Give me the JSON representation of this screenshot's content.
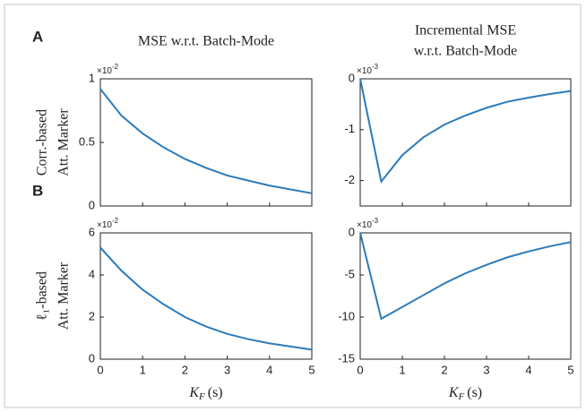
{
  "chart_data": [
    {
      "type": "line",
      "panel_label": "A",
      "title": [
        "MSE w.r.t. Batch-Mode"
      ],
      "ylabel": [
        "Corr.-based",
        "Att. Marker"
      ],
      "y_exponent": {
        "base": "×10",
        "power": "-2"
      },
      "x": [
        0,
        0.5,
        1,
        1.5,
        2,
        2.5,
        3,
        3.5,
        4,
        4.5,
        5
      ],
      "series": [
        {
          "color": "#2b7bba",
          "values": [
            0.92,
            0.71,
            0.57,
            0.46,
            0.37,
            0.3,
            0.24,
            0.2,
            0.16,
            0.13,
            0.1
          ]
        }
      ],
      "xlim": [
        0,
        5
      ],
      "xticks": [
        0,
        1,
        2,
        3,
        4,
        5
      ],
      "show_xtick_labels": false,
      "ylim": [
        0,
        1
      ],
      "yticks": [
        0,
        0.5,
        1
      ]
    },
    {
      "type": "line",
      "title": [
        "Incremental MSE",
        "w.r.t. Batch-Mode"
      ],
      "y_exponent": {
        "base": "×10",
        "power": "-3"
      },
      "x": [
        0,
        0.5,
        1,
        1.5,
        2,
        2.5,
        3,
        3.5,
        4,
        4.5,
        5
      ],
      "series": [
        {
          "color": "#2b7bba",
          "values": [
            0,
            -2.02,
            -1.5,
            -1.15,
            -0.9,
            -0.72,
            -0.57,
            -0.45,
            -0.37,
            -0.3,
            -0.24
          ]
        }
      ],
      "xlim": [
        0,
        5
      ],
      "xticks": [
        0,
        1,
        2,
        3,
        4,
        5
      ],
      "show_xtick_labels": false,
      "ylim": [
        -2.5,
        0
      ],
      "yticks": [
        -2,
        -1,
        0
      ]
    },
    {
      "type": "line",
      "panel_label": "B",
      "ylabel": [
        "ℓ₁-based",
        "Att. Marker"
      ],
      "y_exponent": {
        "base": "×10",
        "power": "-2"
      },
      "xlabel": [
        {
          "text": "K"
        },
        {
          "text": "F",
          "sub": true
        },
        {
          "text": "(s)"
        }
      ],
      "x": [
        0,
        0.5,
        1,
        1.5,
        2,
        2.5,
        3,
        3.5,
        4,
        4.5,
        5
      ],
      "series": [
        {
          "color": "#2b7bba",
          "values": [
            5.3,
            4.2,
            3.3,
            2.6,
            2.0,
            1.55,
            1.2,
            0.95,
            0.75,
            0.6,
            0.45
          ]
        }
      ],
      "xlim": [
        0,
        5
      ],
      "xticks": [
        0,
        1,
        2,
        3,
        4,
        5
      ],
      "show_xtick_labels": true,
      "ylim": [
        0,
        6
      ],
      "yticks": [
        0,
        2,
        4,
        6
      ]
    },
    {
      "type": "line",
      "y_exponent": {
        "base": "×10",
        "power": "-3"
      },
      "xlabel": [
        {
          "text": "K"
        },
        {
          "text": "F",
          "sub": true
        },
        {
          "text": "(s)"
        }
      ],
      "x": [
        0,
        0.5,
        1,
        1.5,
        2,
        2.5,
        3,
        3.5,
        4,
        4.5,
        5
      ],
      "series": [
        {
          "color": "#2b7bba",
          "values": [
            0,
            -10.2,
            -8.8,
            -7.4,
            -6.0,
            -4.8,
            -3.8,
            -2.9,
            -2.2,
            -1.6,
            -1.1
          ]
        }
      ],
      "xlim": [
        0,
        5
      ],
      "xticks": [
        0,
        1,
        2,
        3,
        4,
        5
      ],
      "show_xtick_labels": true,
      "ylim": [
        -15,
        0
      ],
      "yticks": [
        -15,
        -10,
        -5,
        0
      ]
    }
  ]
}
